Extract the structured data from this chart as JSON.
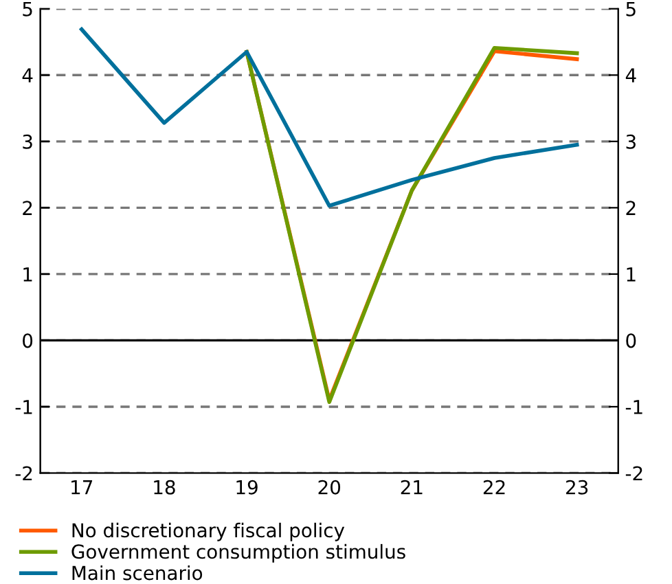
{
  "chart_data": {
    "type": "line",
    "categories": [
      "17",
      "18",
      "19",
      "20",
      "21",
      "22",
      "23"
    ],
    "series": [
      {
        "name": "No discretionary fiscal policy",
        "color": "#ff5a00",
        "values": [
          null,
          null,
          4.35,
          -0.9,
          2.26,
          4.36,
          4.24
        ]
      },
      {
        "name": "Government consumption stimulus",
        "color": "#6e9b00",
        "values": [
          null,
          null,
          4.35,
          -0.93,
          2.26,
          4.41,
          4.33
        ]
      },
      {
        "name": "Main scenario",
        "color": "#00709c",
        "values": [
          4.69,
          3.28,
          4.35,
          2.03,
          2.42,
          2.75,
          2.95
        ]
      }
    ],
    "ylim": [
      -2,
      5
    ],
    "yticks": [
      -2,
      -1,
      0,
      1,
      2,
      3,
      4,
      5
    ],
    "y2lim": [
      -2,
      5
    ],
    "y2ticks": [
      -2,
      -1,
      0,
      1,
      2,
      3,
      4,
      5
    ],
    "grid": "y",
    "legend": "bottom",
    "marker": "none",
    "line_style": "solid",
    "ref_lines": [
      {
        "axis": "y",
        "value": 0,
        "color": "#000000",
        "line_style": "solid"
      }
    ]
  }
}
